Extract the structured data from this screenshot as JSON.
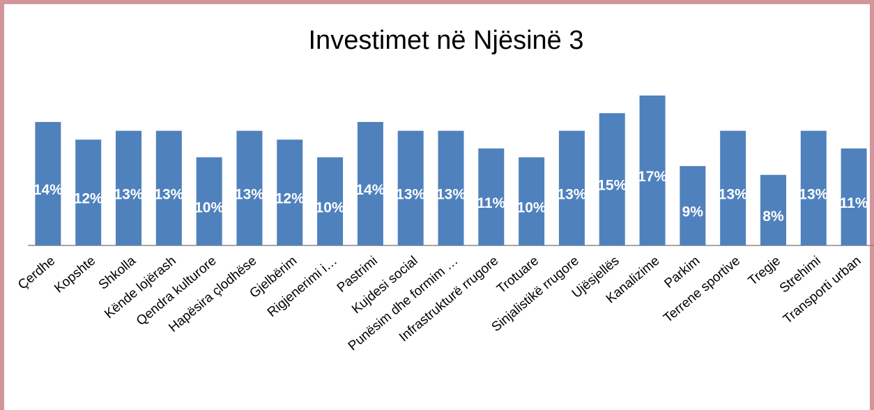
{
  "chart_data": {
    "type": "bar",
    "title": "Investimet në Njësinë 3",
    "categories": [
      "Çerdhe",
      "Kopshte",
      "Shkolla",
      "Kënde lojërash",
      "Qendra kulturore",
      "Hapësira çlodhëse",
      "Gjelbërim",
      "Rigjenerimi i…",
      "Pastrimi",
      "Kujdesi social",
      "Punësim dhe formim …",
      "Infrastrukturë rrugore",
      "Trotuare",
      "Sinjalistikë rrugore",
      "Ujësjellës",
      "Kanalizime",
      "Parkim",
      "Terrene sportive",
      "Tregje",
      "Strehimi",
      "Transporti urban"
    ],
    "values": [
      14,
      12,
      13,
      13,
      10,
      13,
      12,
      10,
      14,
      13,
      13,
      11,
      10,
      13,
      15,
      17,
      9,
      13,
      8,
      13,
      11
    ],
    "value_labels": [
      "14%",
      "12%",
      "13%",
      "13%",
      "10%",
      "13%",
      "12%",
      "10%",
      "14%",
      "13%",
      "13%",
      "11%",
      "10%",
      "13%",
      "15%",
      "17%",
      "9%",
      "13%",
      "8%",
      "13%",
      "11%"
    ],
    "color": "#4f81bd"
  }
}
